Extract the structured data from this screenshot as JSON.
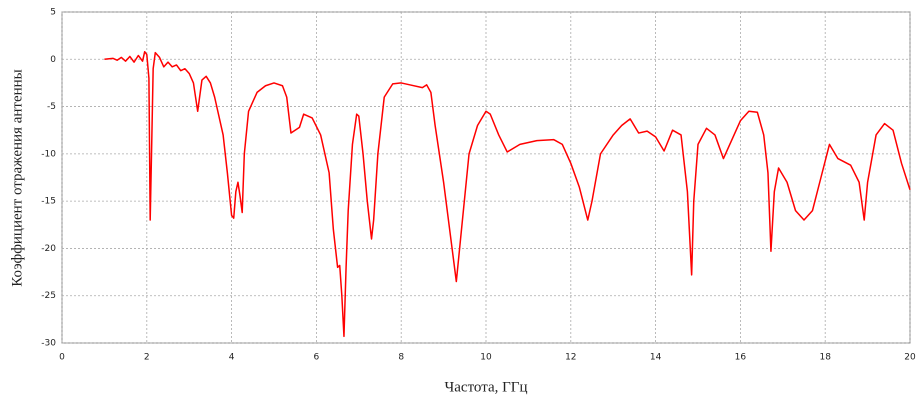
{
  "chart_data": {
    "type": "line",
    "x_label": "Частота, ГГц",
    "y_label": "Коэффициент отражения антенны",
    "x": [
      1.0,
      1.2,
      1.3,
      1.4,
      1.5,
      1.6,
      1.7,
      1.8,
      1.9,
      1.95,
      2.0,
      2.05,
      2.08,
      2.12,
      2.15,
      2.2,
      2.3,
      2.4,
      2.5,
      2.6,
      2.7,
      2.8,
      2.9,
      3.0,
      3.1,
      3.2,
      3.3,
      3.4,
      3.5,
      3.6,
      3.8,
      3.9,
      4.0,
      4.05,
      4.1,
      4.15,
      4.2,
      4.25,
      4.3,
      4.4,
      4.6,
      4.8,
      5.0,
      5.2,
      5.3,
      5.4,
      5.6,
      5.7,
      5.9,
      6.1,
      6.3,
      6.4,
      6.5,
      6.55,
      6.6,
      6.65,
      6.7,
      6.75,
      6.85,
      6.95,
      7.0,
      7.1,
      7.2,
      7.3,
      7.35,
      7.45,
      7.6,
      7.8,
      8.0,
      8.2,
      8.5,
      8.6,
      8.7,
      8.8,
      9.0,
      9.2,
      9.3,
      9.4,
      9.6,
      9.8,
      10.0,
      10.1,
      10.3,
      10.5,
      10.8,
      11.2,
      11.6,
      11.8,
      12.0,
      12.2,
      12.4,
      12.5,
      12.7,
      13.0,
      13.2,
      13.4,
      13.6,
      13.8,
      14.0,
      14.2,
      14.4,
      14.6,
      14.75,
      14.85,
      14.9,
      15.0,
      15.2,
      15.4,
      15.6,
      15.8,
      16.0,
      16.2,
      16.4,
      16.55,
      16.65,
      16.72,
      16.8,
      16.9,
      17.1,
      17.3,
      17.5,
      17.7,
      17.9,
      18.1,
      18.3,
      18.6,
      18.8,
      18.92,
      19.0,
      19.2,
      19.4,
      19.6,
      19.8,
      20.0
    ],
    "values": [
      0,
      0.1,
      -0.1,
      0.2,
      -0.2,
      0.3,
      -0.3,
      0.4,
      -0.2,
      0.8,
      0.5,
      -2,
      -17,
      -8,
      -1,
      0.7,
      0.2,
      -0.8,
      -0.3,
      -0.8,
      -0.6,
      -1.2,
      -1,
      -1.5,
      -2.5,
      -5.5,
      -2.2,
      -1.8,
      -2.5,
      -4,
      -8,
      -12,
      -16.5,
      -16.8,
      -14,
      -13,
      -14.5,
      -16.2,
      -10,
      -5.5,
      -3.5,
      -2.8,
      -2.5,
      -2.8,
      -4,
      -7.8,
      -7.2,
      -5.8,
      -6.2,
      -8,
      -12,
      -18,
      -22,
      -21.8,
      -25,
      -29.3,
      -22,
      -16,
      -9,
      -5.8,
      -6,
      -10,
      -15,
      -19,
      -17,
      -10,
      -4,
      -2.6,
      -2.5,
      -2.7,
      -3,
      -2.7,
      -3.5,
      -7,
      -13,
      -20,
      -23.5,
      -19,
      -10,
      -7,
      -5.5,
      -5.8,
      -8,
      -9.8,
      -9,
      -8.6,
      -8.5,
      -9,
      -11,
      -13.5,
      -17,
      -15,
      -10,
      -8,
      -7,
      -6.3,
      -7.8,
      -7.6,
      -8.2,
      -9.7,
      -7.5,
      -8,
      -14,
      -22.8,
      -15,
      -9,
      -7.3,
      -8,
      -10.5,
      -8.5,
      -6.5,
      -5.5,
      -5.6,
      -8,
      -12,
      -20.3,
      -14,
      -11.5,
      -13,
      -16,
      -17,
      -16,
      -12.5,
      -9,
      -10.5,
      -11.2,
      -13,
      -17,
      -13,
      -8,
      -6.8,
      -7.5,
      -11,
      -13.8
    ],
    "color": "#ff0000",
    "xlim": [
      0,
      20
    ],
    "xticks": [
      0,
      2,
      4,
      6,
      8,
      10,
      12,
      14,
      16,
      18,
      20
    ],
    "ylim": [
      -30,
      5
    ],
    "yticks": [
      5,
      0,
      -5,
      -10,
      -15,
      -20,
      -25,
      -30
    ],
    "grid": true
  }
}
